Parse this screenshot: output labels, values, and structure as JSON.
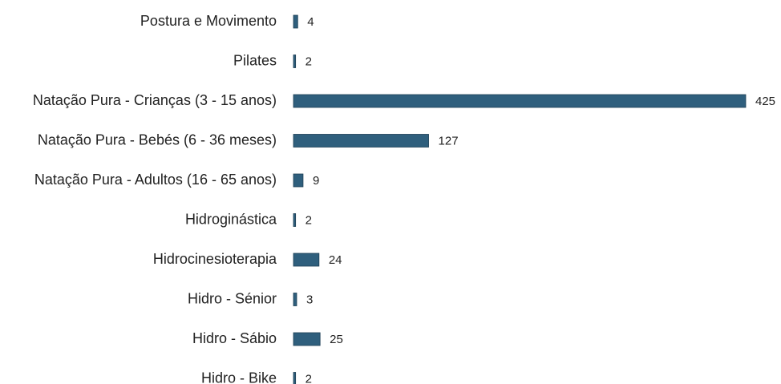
{
  "chart_data": {
    "type": "bar",
    "orientation": "horizontal",
    "categories": [
      "Postura e Movimento",
      "Pilates",
      "Natação Pura - Crianças (3 - 15 anos)",
      "Natação Pura - Bebés (6 - 36 meses)",
      "Natação Pura - Adultos (16 - 65 anos)",
      "Hidroginástica",
      "Hidrocinesioterapia",
      "Hidro - Sénior",
      "Hidro - Sábio",
      "Hidro - Bike"
    ],
    "values": [
      4,
      2,
      425,
      127,
      9,
      2,
      24,
      3,
      25,
      2
    ],
    "color": "#2f5f7d"
  }
}
